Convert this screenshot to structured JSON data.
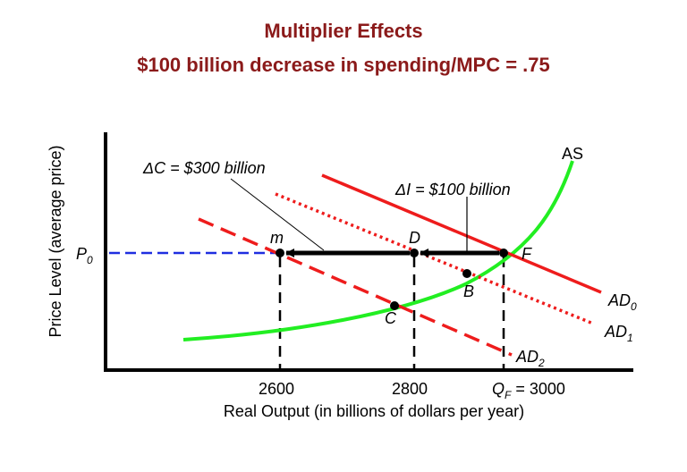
{
  "title": "Multiplier Effects",
  "subtitle": "$100 billion decrease in spending/MPC = .75",
  "chart_data": {
    "type": "line",
    "xlabel": "Real Output (in billions of dollars per year)",
    "ylabel": "Price Level (average price)",
    "x_ticks": [
      "2600",
      "2800"
    ],
    "x_tick_qf": {
      "main": "Q",
      "sub": "F",
      "rest": " = 3000"
    },
    "y_tick": {
      "main": "P",
      "sub": "0"
    },
    "series": [
      {
        "name": "AS",
        "color": "#22ee22"
      },
      {
        "name": "AD",
        "sub": "0",
        "color": "#ee1c1c",
        "style": "solid"
      },
      {
        "name": "AD",
        "sub": "1",
        "color": "#ee1c1c",
        "style": "dotted"
      },
      {
        "name": "AD",
        "sub": "2",
        "color": "#ee1c1c",
        "style": "dashed"
      }
    ],
    "points": [
      {
        "label": "m",
        "x": 2600
      },
      {
        "label": "D",
        "x": 2800
      },
      {
        "label": "F",
        "x": 3000
      },
      {
        "label": "B"
      },
      {
        "label": "C"
      }
    ],
    "annotations": {
      "delta_c": "ΔC = $300 billion",
      "delta_i": "ΔI = $100 billion"
    }
  }
}
